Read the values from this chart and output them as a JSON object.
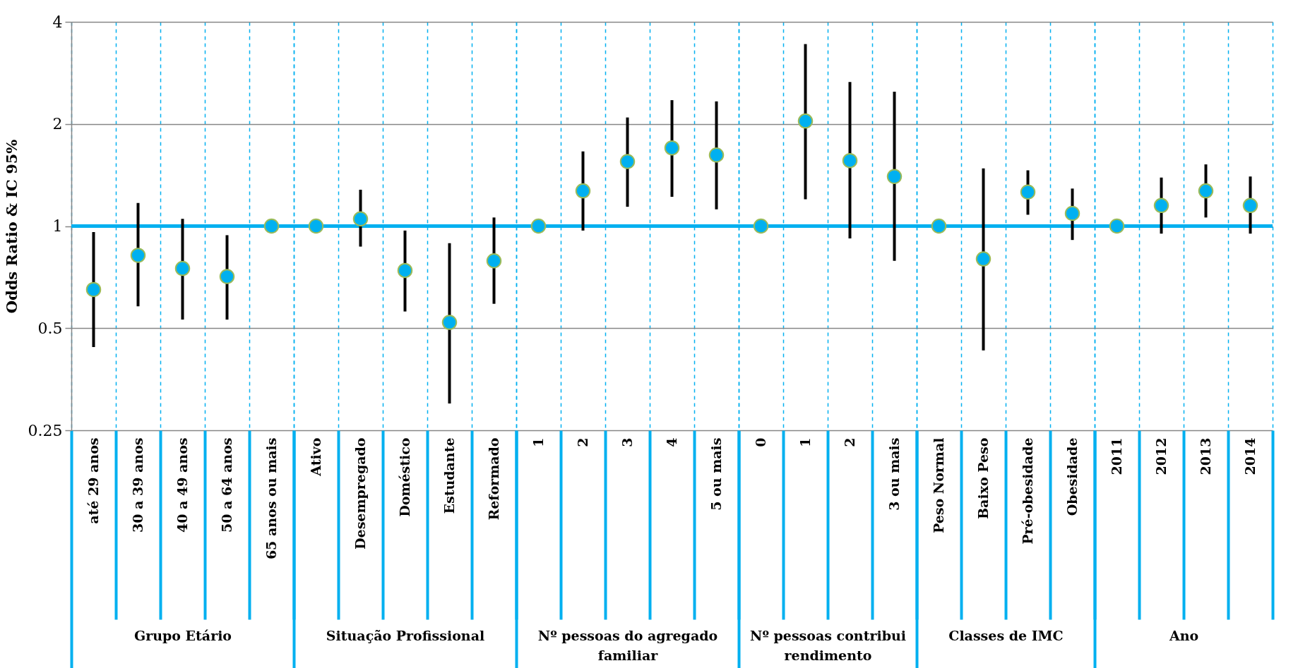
{
  "chart_data": [
    {
      "type": "scatter",
      "xlabel": "Grupo Etário",
      "ylabel": "Odds Ratio & IC 95%",
      "categories": [
        "até 29 anos",
        "30 a 39 anos",
        "40 a 49 anos",
        "50 a 64 anos",
        "65 anos ou mais"
      ],
      "values": [
        0.65,
        0.82,
        0.75,
        0.71,
        1
      ],
      "errors": [
        [
          0.44,
          0.96
        ],
        [
          0.58,
          1.17
        ],
        [
          0.53,
          1.05
        ],
        [
          0.53,
          0.94
        ],
        null
      ],
      "color": "#00b0f0",
      "marker": "circle",
      "log": true,
      "ylim": [
        0.25,
        4
      ],
      "yticks": [
        0.25,
        0.5,
        1,
        2,
        4
      ],
      "grid": true,
      "ref_lines": [
        {
          "axis": "y",
          "value": 1,
          "color": "#00b0f0"
        }
      ]
    },
    {
      "type": "scatter",
      "xlabel": "Situação Profissional",
      "categories": [
        "Ativo",
        "Desempregado",
        "Doméstico",
        "Estudante",
        "Reformado"
      ],
      "values": [
        1,
        1.05,
        0.74,
        0.52,
        0.79
      ],
      "errors": [
        null,
        [
          0.87,
          1.28
        ],
        [
          0.56,
          0.97
        ],
        [
          0.3,
          0.89
        ],
        [
          0.59,
          1.06
        ]
      ],
      "color": "#00b0f0",
      "marker": "circle",
      "log": true,
      "ylim": [
        0.25,
        4
      ],
      "yticks": [
        0.25,
        0.5,
        1,
        2,
        4
      ],
      "grid": true,
      "tick_labels": "x",
      "ref_lines": [
        {
          "axis": "y",
          "value": 1,
          "color": "#00b0f0"
        }
      ]
    },
    {
      "type": "scatter",
      "xlabel": "Nº pessoas do agregado familiar",
      "categories": [
        "1",
        "2",
        "3",
        "4",
        "5 ou mais"
      ],
      "values": [
        1,
        1.27,
        1.55,
        1.7,
        1.62
      ],
      "errors": [
        null,
        [
          0.97,
          1.66
        ],
        [
          1.14,
          2.09
        ],
        [
          1.22,
          2.35
        ],
        [
          1.12,
          2.33
        ]
      ],
      "color": "#00b0f0",
      "marker": "circle",
      "log": true,
      "ylim": [
        0.25,
        4
      ],
      "yticks": [
        0.25,
        0.5,
        1,
        2,
        4
      ],
      "grid": true,
      "tick_labels": "x",
      "ref_lines": [
        {
          "axis": "y",
          "value": 1,
          "color": "#00b0f0"
        }
      ]
    },
    {
      "type": "scatter",
      "xlabel": "Nº pessoas contribui rendimento",
      "categories": [
        "0",
        "1",
        "2",
        "3 ou mais"
      ],
      "values": [
        1,
        2.04,
        1.56,
        1.4
      ],
      "errors": [
        null,
        [
          1.2,
          3.44
        ],
        [
          0.92,
          2.66
        ],
        [
          0.79,
          2.49
        ]
      ],
      "color": "#00b0f0",
      "marker": "circle",
      "log": true,
      "ylim": [
        0.25,
        4
      ],
      "yticks": [
        0.25,
        0.5,
        1,
        2,
        4
      ],
      "grid": true,
      "tick_labels": "x",
      "ref_lines": [
        {
          "axis": "y",
          "value": 1,
          "color": "#00b0f0"
        }
      ]
    },
    {
      "type": "scatter",
      "xlabel": "Classes de IMC",
      "categories": [
        "Peso Normal",
        "Baixo Peso",
        "Pré-obesidade",
        "Obesidade"
      ],
      "values": [
        1,
        0.8,
        1.26,
        1.09
      ],
      "errors": [
        null,
        [
          0.43,
          1.48
        ],
        [
          1.08,
          1.46
        ],
        [
          0.91,
          1.29
        ]
      ],
      "color": "#00b0f0",
      "marker": "circle",
      "log": true,
      "ylim": [
        0.25,
        4
      ],
      "yticks": [
        0.25,
        0.5,
        1,
        2,
        4
      ],
      "grid": true,
      "tick_labels": "x",
      "ref_lines": [
        {
          "axis": "y",
          "value": 1,
          "color": "#00b0f0"
        }
      ]
    },
    {
      "type": "scatter",
      "xlabel": "Ano",
      "categories": [
        "2011",
        "2012",
        "2013",
        "2014"
      ],
      "values": [
        1,
        1.15,
        1.27,
        1.15
      ],
      "errors": [
        null,
        [
          0.95,
          1.39
        ],
        [
          1.06,
          1.52
        ],
        [
          0.95,
          1.4
        ]
      ],
      "color": "#00b0f0",
      "marker": "circle",
      "log": true,
      "ylim": [
        0.25,
        4
      ],
      "yticks": [
        0.25,
        0.5,
        1,
        2,
        4
      ],
      "grid": true,
      "tick_labels": "x",
      "ref_lines": [
        {
          "axis": "y",
          "value": 1,
          "color": "#00b0f0"
        }
      ]
    }
  ]
}
